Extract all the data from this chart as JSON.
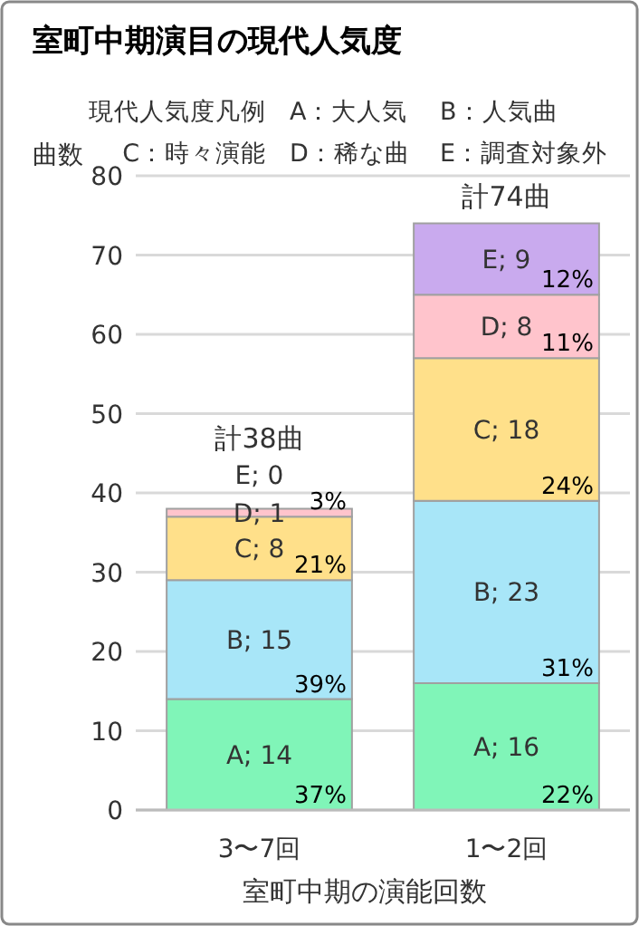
{
  "chart_data": {
    "type": "bar",
    "title": "室町中期演目の現代人気度",
    "ylabel": "曲数",
    "xlabel": "室町中期の演能回数",
    "categories": [
      "3〜7回",
      "1〜2回"
    ],
    "stacked": true,
    "series": [
      {
        "color": "#80f5b8",
        "values": [
          14,
          16
        ],
        "value_labels": [
          "A; 14",
          "A; 16"
        ]
      },
      {
        "color": "#a8e6f8",
        "values": [
          15,
          23
        ],
        "value_labels": [
          "B; 15",
          "B; 23"
        ]
      },
      {
        "color": "#ffe08a",
        "values": [
          8,
          18
        ],
        "value_labels": [
          "C; 8",
          "C; 18"
        ]
      },
      {
        "color": "#ffc4cc",
        "values": [
          1,
          8
        ],
        "value_labels": [
          "D; 1",
          "D; 8"
        ]
      },
      {
        "color": "#c9aaee",
        "values": [
          0,
          9
        ],
        "value_labels": [
          "E; 0",
          "E; 9"
        ]
      }
    ],
    "totals": [
      "計38曲",
      "計74曲"
    ],
    "ylim": [
      0,
      80
    ],
    "yticks": [
      0,
      10,
      20,
      30,
      40,
      50,
      60,
      70,
      80
    ],
    "grid": "y",
    "annotations": [
      "現代人気度凡例",
      "A：大人気",
      "B：人気曲",
      "C：時々演能",
      "D：稀な曲",
      "E：調査対象外",
      {
        "text": "37%",
        "x": "3〜7回",
        "y": 0
      },
      {
        "text": "39%",
        "x": "3〜7回",
        "y": 14
      },
      {
        "text": "21%",
        "x": "3〜7回",
        "y": 29
      },
      {
        "text": "3%",
        "x": "3〜7回",
        "y": 37
      },
      {
        "text": "22%",
        "x": "1〜2回",
        "y": 0
      },
      {
        "text": "31%",
        "x": "1〜2回",
        "y": 16
      },
      {
        "text": "24%",
        "x": "1〜2回",
        "y": 39
      },
      {
        "text": "11%",
        "x": "1〜2回",
        "y": 57
      },
      {
        "text": "12%",
        "x": "1〜2回",
        "y": 65
      }
    ]
  }
}
